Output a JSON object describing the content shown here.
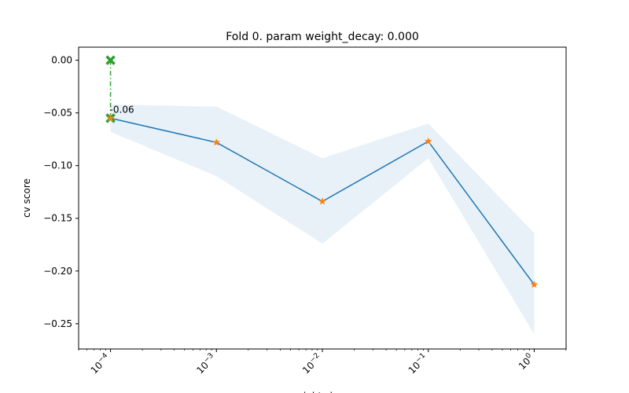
{
  "chart_data": {
    "type": "line",
    "title": "Fold 0. param weight_decay: 0.000",
    "xlabel": "weight_decay",
    "ylabel": "cv score",
    "xscale": "log",
    "xlim": [
      5e-05,
      2.0
    ],
    "ylim": [
      -0.274,
      0.0124
    ],
    "x": [
      0.0001,
      0.001,
      0.01,
      0.1,
      1.0
    ],
    "xtick_labels": [
      "10^-4",
      "10^-3",
      "10^-2",
      "10^-1",
      "10^0"
    ],
    "yticks": [
      0.0,
      -0.05,
      -0.1,
      -0.15,
      -0.2,
      -0.25
    ],
    "ytick_labels": [
      "0.00",
      "−0.05",
      "−0.10",
      "−0.15",
      "−0.20",
      "−0.25"
    ],
    "grid": false,
    "series": [
      {
        "values": [
          -0.055,
          -0.078,
          -0.134,
          -0.077,
          -0.213
        ],
        "color": "#1f77b4",
        "marker_color": "#ff7f0e",
        "marker": "star"
      }
    ],
    "band": {
      "upper": [
        -0.042,
        -0.044,
        -0.093,
        -0.06,
        -0.164
      ],
      "lower": [
        -0.068,
        -0.11,
        -0.174,
        -0.093,
        -0.26
      ],
      "color": "#1f77b4"
    },
    "best": {
      "x": 0.0001,
      "y_top": 0.0,
      "y_score": -0.055,
      "label": "-0.06",
      "color": "#2ca02c"
    }
  }
}
